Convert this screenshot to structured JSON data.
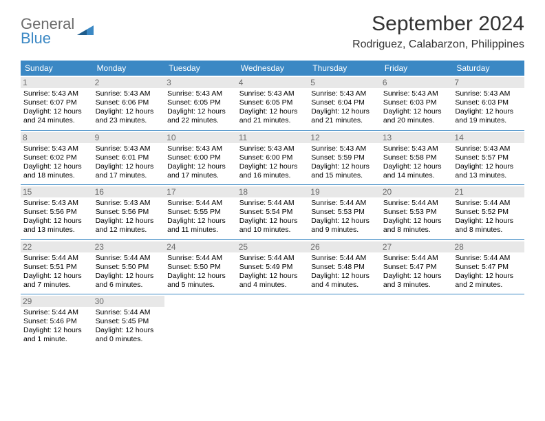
{
  "logo": {
    "text1": "General",
    "text2": "Blue"
  },
  "title": "September 2024",
  "subtitle": "Rodriguez, Calabarzon, Philippines",
  "colors": {
    "header_bg": "#3b88c4",
    "header_text": "#ffffff",
    "daynum_bg": "#e8e8e8",
    "daynum_text": "#6b6b6b",
    "week_border": "#3b88c4",
    "logo_gray": "#6b6b6b",
    "logo_blue": "#3b88c4"
  },
  "weekdays": [
    "Sunday",
    "Monday",
    "Tuesday",
    "Wednesday",
    "Thursday",
    "Friday",
    "Saturday"
  ],
  "days": [
    {
      "n": "1",
      "sr": "5:43 AM",
      "ss": "6:07 PM",
      "dl": "12 hours and 24 minutes."
    },
    {
      "n": "2",
      "sr": "5:43 AM",
      "ss": "6:06 PM",
      "dl": "12 hours and 23 minutes."
    },
    {
      "n": "3",
      "sr": "5:43 AM",
      "ss": "6:05 PM",
      "dl": "12 hours and 22 minutes."
    },
    {
      "n": "4",
      "sr": "5:43 AM",
      "ss": "6:05 PM",
      "dl": "12 hours and 21 minutes."
    },
    {
      "n": "5",
      "sr": "5:43 AM",
      "ss": "6:04 PM",
      "dl": "12 hours and 21 minutes."
    },
    {
      "n": "6",
      "sr": "5:43 AM",
      "ss": "6:03 PM",
      "dl": "12 hours and 20 minutes."
    },
    {
      "n": "7",
      "sr": "5:43 AM",
      "ss": "6:03 PM",
      "dl": "12 hours and 19 minutes."
    },
    {
      "n": "8",
      "sr": "5:43 AM",
      "ss": "6:02 PM",
      "dl": "12 hours and 18 minutes."
    },
    {
      "n": "9",
      "sr": "5:43 AM",
      "ss": "6:01 PM",
      "dl": "12 hours and 17 minutes."
    },
    {
      "n": "10",
      "sr": "5:43 AM",
      "ss": "6:00 PM",
      "dl": "12 hours and 17 minutes."
    },
    {
      "n": "11",
      "sr": "5:43 AM",
      "ss": "6:00 PM",
      "dl": "12 hours and 16 minutes."
    },
    {
      "n": "12",
      "sr": "5:43 AM",
      "ss": "5:59 PM",
      "dl": "12 hours and 15 minutes."
    },
    {
      "n": "13",
      "sr": "5:43 AM",
      "ss": "5:58 PM",
      "dl": "12 hours and 14 minutes."
    },
    {
      "n": "14",
      "sr": "5:43 AM",
      "ss": "5:57 PM",
      "dl": "12 hours and 13 minutes."
    },
    {
      "n": "15",
      "sr": "5:43 AM",
      "ss": "5:56 PM",
      "dl": "12 hours and 13 minutes."
    },
    {
      "n": "16",
      "sr": "5:43 AM",
      "ss": "5:56 PM",
      "dl": "12 hours and 12 minutes."
    },
    {
      "n": "17",
      "sr": "5:44 AM",
      "ss": "5:55 PM",
      "dl": "12 hours and 11 minutes."
    },
    {
      "n": "18",
      "sr": "5:44 AM",
      "ss": "5:54 PM",
      "dl": "12 hours and 10 minutes."
    },
    {
      "n": "19",
      "sr": "5:44 AM",
      "ss": "5:53 PM",
      "dl": "12 hours and 9 minutes."
    },
    {
      "n": "20",
      "sr": "5:44 AM",
      "ss": "5:53 PM",
      "dl": "12 hours and 8 minutes."
    },
    {
      "n": "21",
      "sr": "5:44 AM",
      "ss": "5:52 PM",
      "dl": "12 hours and 8 minutes."
    },
    {
      "n": "22",
      "sr": "5:44 AM",
      "ss": "5:51 PM",
      "dl": "12 hours and 7 minutes."
    },
    {
      "n": "23",
      "sr": "5:44 AM",
      "ss": "5:50 PM",
      "dl": "12 hours and 6 minutes."
    },
    {
      "n": "24",
      "sr": "5:44 AM",
      "ss": "5:50 PM",
      "dl": "12 hours and 5 minutes."
    },
    {
      "n": "25",
      "sr": "5:44 AM",
      "ss": "5:49 PM",
      "dl": "12 hours and 4 minutes."
    },
    {
      "n": "26",
      "sr": "5:44 AM",
      "ss": "5:48 PM",
      "dl": "12 hours and 4 minutes."
    },
    {
      "n": "27",
      "sr": "5:44 AM",
      "ss": "5:47 PM",
      "dl": "12 hours and 3 minutes."
    },
    {
      "n": "28",
      "sr": "5:44 AM",
      "ss": "5:47 PM",
      "dl": "12 hours and 2 minutes."
    },
    {
      "n": "29",
      "sr": "5:44 AM",
      "ss": "5:46 PM",
      "dl": "12 hours and 1 minute."
    },
    {
      "n": "30",
      "sr": "5:44 AM",
      "ss": "5:45 PM",
      "dl": "12 hours and 0 minutes."
    }
  ],
  "labels": {
    "sunrise": "Sunrise: ",
    "sunset": "Sunset: ",
    "daylight": "Daylight: "
  }
}
